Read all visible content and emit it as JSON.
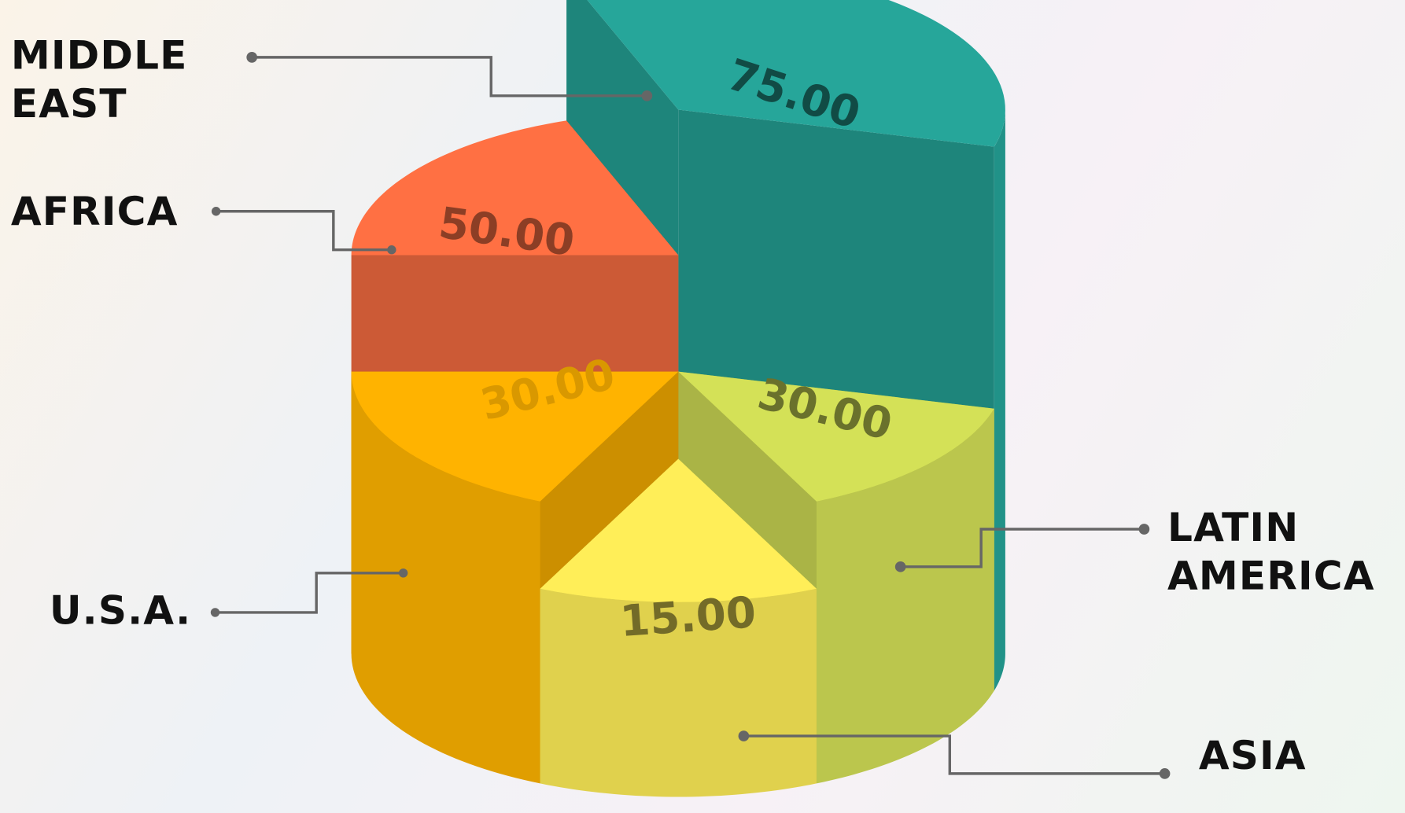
{
  "chart_data": {
    "type": "stepped_pie_3d",
    "categories": [
      "MIDDLE EAST",
      "AFRICA",
      "LATIN AMERICA",
      "U.S.A.",
      "ASIA"
    ],
    "values": [
      75,
      50,
      30,
      30,
      15
    ],
    "value_labels": [
      "75.00",
      "50.00",
      "30.00",
      "30.00",
      "15.00"
    ],
    "colors": [
      "#26a69a",
      "#ff7043",
      "#d4e157",
      "#ffb300",
      "#ffee58"
    ]
  }
}
